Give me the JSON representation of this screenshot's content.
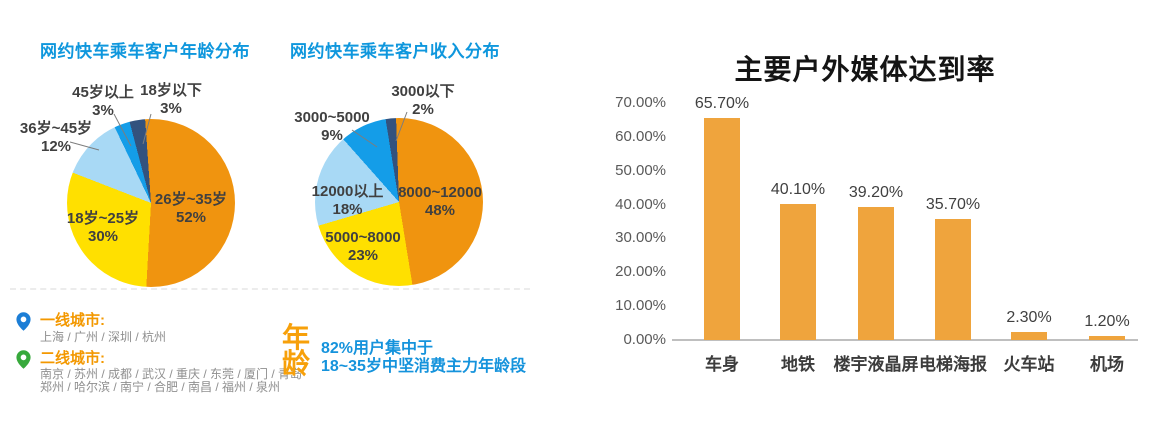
{
  "page": {
    "background": "#ffffff"
  },
  "colors": {
    "title_blue": "#0f97dd",
    "pie_label_dark": "#404040",
    "leader_gray": "#7d7d7d",
    "axis_gray": "#bfbfbf",
    "tick_gray": "#595959",
    "bar_title_black": "#141414",
    "city_label_orange": "#f39800",
    "city_text_gray": "#8f8f8f",
    "note_orange": "#f7a00a",
    "note_blue": "#1593dc",
    "pin_blue": "#1c7ed6",
    "pin_green": "#37a93c",
    "bar_orange": "#efa43d",
    "pie_orange": "#f0940f",
    "pie_yellow": "#ffe000",
    "pie_light_blue": "#a8d9f5",
    "pie_mid_blue": "#149de8",
    "pie_navy": "#33527e"
  },
  "chart_data": [
    {
      "type": "pie",
      "title": "网约快车乘车客户年龄分布",
      "start_angle": -4,
      "legend_position": "none",
      "slices": [
        {
          "label": "26岁~35岁",
          "pct": "52%",
          "value": 52,
          "color": "#f0940f",
          "placement": "inside"
        },
        {
          "label": "18岁~25岁",
          "pct": "30%",
          "value": 30,
          "color": "#ffe000",
          "placement": "inside"
        },
        {
          "label": "36岁~45岁",
          "pct": "12%",
          "value": 12,
          "color": "#a8d9f5",
          "placement": "outside"
        },
        {
          "label": "45岁以上",
          "pct": "3%",
          "value": 3,
          "color": "#149de8",
          "placement": "outside"
        },
        {
          "label": "18岁以下",
          "pct": "3%",
          "value": 3,
          "color": "#33527e",
          "placement": "outside"
        }
      ]
    },
    {
      "type": "pie",
      "title": "网约快车乘车客户收入分布",
      "start_angle": -2,
      "legend_position": "none",
      "slices": [
        {
          "label": "8000~12000",
          "pct": "48%",
          "value": 48,
          "color": "#f0940f",
          "placement": "inside"
        },
        {
          "label": "5000~8000",
          "pct": "23%",
          "value": 23,
          "color": "#ffe000",
          "placement": "inside"
        },
        {
          "label": "12000以上",
          "pct": "18%",
          "value": 18,
          "color": "#a8d9f5",
          "placement": "inside"
        },
        {
          "label": "3000~5000",
          "pct": "9%",
          "value": 9,
          "color": "#149de8",
          "placement": "outside"
        },
        {
          "label": "3000以下",
          "pct": "2%",
          "value": 2,
          "color": "#33527e",
          "placement": "outside"
        }
      ]
    },
    {
      "type": "bar",
      "title": "主要户外媒体达到率",
      "categories": [
        "车身",
        "地铁",
        "楼宇液晶屏",
        "电梯海报",
        "火车站",
        "机场"
      ],
      "values": [
        65.7,
        40.1,
        39.2,
        35.7,
        2.3,
        1.2
      ],
      "value_labels": [
        "65.70%",
        "40.10%",
        "39.20%",
        "35.70%",
        "2.30%",
        "1.20%"
      ],
      "y_tick_labels": [
        "70.00%",
        "60.00%",
        "50.00%",
        "40.00%",
        "30.00%",
        "20.00%",
        "10.00%",
        "0.00%"
      ],
      "ylim": [
        0,
        70
      ],
      "grid": false,
      "legend_position": "none",
      "bar_color": "#efa43d",
      "xlabel": "",
      "ylabel": ""
    }
  ],
  "notes": {
    "tier1_label": "一线城市:",
    "tier1_cities": "上海 / 广州 / 深圳 / 杭州",
    "tier2_label": "二线城市:",
    "tier2_cities_line1": "南京 / 苏州 / 成都 / 武汉 / 重庆 / 东莞 / 厦门 / 青岛",
    "tier2_cities_line2": "郑州 / 哈尔滨 / 南宁 / 合肥 / 南昌 / 福州 / 泉州",
    "age_heading": "年龄",
    "age_line1": "82%用户集中于",
    "age_line2": "18~35岁中坚消费主力年龄段"
  }
}
